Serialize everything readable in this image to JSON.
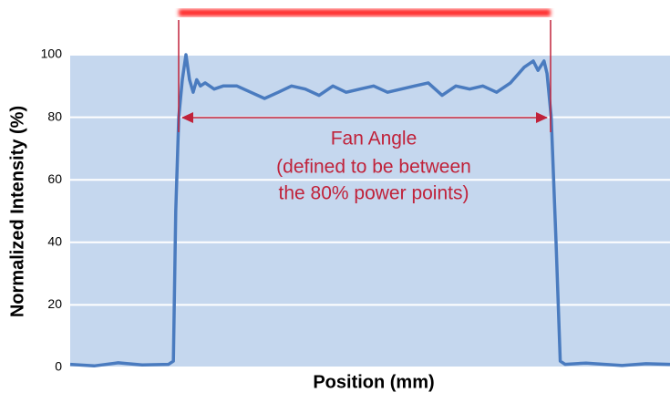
{
  "chart_data": {
    "type": "line",
    "xlabel": "Position (mm)",
    "ylabel": "Normalized Intensity (%)",
    "annotations": [
      "Fan Angle",
      "(defined to be between",
      "the 80% power points)"
    ],
    "x": [
      0,
      4,
      8,
      12,
      16.4,
      17.2,
      17.6,
      18.1,
      18.7,
      19.3,
      19.9,
      20.5,
      21.1,
      21.7,
      22.5,
      24.0,
      25.5,
      27.8,
      30.1,
      32.4,
      34.7,
      36.9,
      39.2,
      41.5,
      43.8,
      46.0,
      48.3,
      50.6,
      52.9,
      55.2,
      57.4,
      59.7,
      62.0,
      64.3,
      66.6,
      68.8,
      71.1,
      73.4,
      75.7,
      77.2,
      78.0,
      79.0,
      79.5,
      80.2,
      81.0,
      81.7,
      82.5,
      86,
      92,
      96,
      100
    ],
    "values": [
      1,
      0.5,
      1.5,
      0.8,
      1,
      2,
      50,
      80,
      92,
      100,
      92,
      88,
      92,
      90,
      91,
      89,
      90,
      90,
      88,
      86,
      88,
      90,
      89,
      87,
      90,
      88,
      89,
      90,
      88,
      89,
      90,
      91,
      87,
      90,
      89,
      90,
      88,
      91,
      96,
      98,
      95,
      98,
      94,
      80,
      40,
      2,
      1,
      1.4,
      0.6,
      1.2,
      1
    ],
    "color": "#4a7bbf",
    "xlim": [
      0,
      100
    ],
    "ylim": [
      0,
      100
    ],
    "yticks": [
      0,
      20,
      40,
      60,
      80,
      100
    ],
    "grid": true
  }
}
